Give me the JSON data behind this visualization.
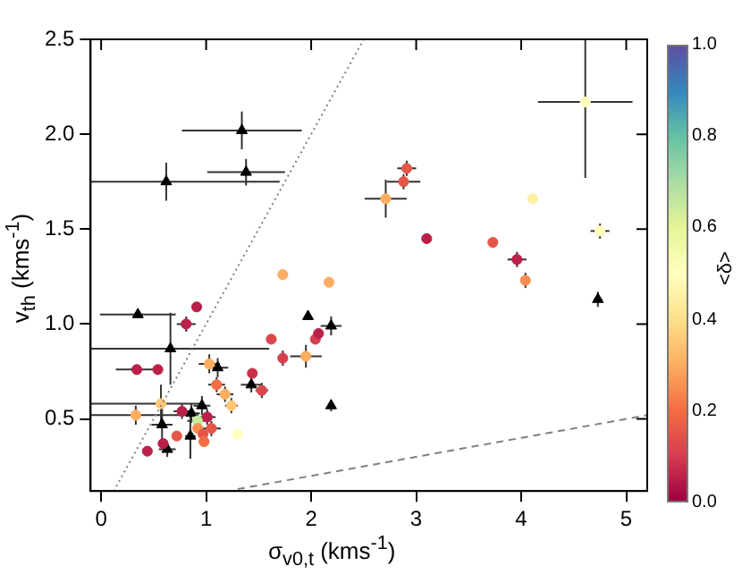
{
  "chart_data": {
    "type": "scatter",
    "xlabel": "σ$_{v0,t}$ (kms$^{-1}$)",
    "ylabel": "v$_{th}$ (kms$^{-1}$)",
    "clabel": "<δ>",
    "xlim": [
      -0.1,
      5.2
    ],
    "ylim": [
      0.12,
      2.5
    ],
    "xticks": [
      0,
      1,
      2,
      3,
      4,
      5
    ],
    "yticks": [
      0.5,
      {
        "value": 1,
        "label": "1.0"
      },
      1.5,
      {
        "value": 2,
        "label": "2.0"
      },
      2.5
    ],
    "clim": [
      0,
      1
    ],
    "cticks": [
      {
        "value": 0,
        "label": "0.0"
      },
      0.2,
      0.4,
      0.6,
      0.8,
      {
        "value": 1,
        "label": "1.0"
      }
    ],
    "grid": false,
    "legend": false,
    "series": [
      {
        "type": "line",
        "color": "#808080",
        "line_style": "dotted",
        "marker": "none",
        "x": [
          0.12,
          2.5
        ],
        "values": [
          0.12,
          2.5
        ]
      },
      {
        "type": "line",
        "color": "#808080",
        "line_style": "dashed",
        "marker": "none",
        "x": [
          1.3,
          5.2
        ],
        "values": [
          0.13,
          0.52
        ]
      },
      {
        "marker": "circle",
        "x": [
          0.91,
          0.81,
          0.34,
          0.54,
          1.03,
          1.1,
          1.18,
          1.24,
          1.44,
          1.53,
          1.62,
          1.73,
          1.95,
          2.04,
          2.07,
          1.73,
          2.17,
          0.92,
          1.01,
          0.77,
          0.92,
          1.05,
          0.97,
          0.98,
          0.72,
          0.59,
          0.44,
          1.3,
          0.57,
          0.33,
          4.61,
          2.91,
          2.88,
          2.71,
          4.11,
          3.1,
          3.73,
          3.96,
          4.75,
          4.04
        ],
        "values": [
          1.09,
          1.0,
          0.76,
          0.76,
          0.79,
          0.68,
          0.63,
          0.57,
          0.74,
          0.65,
          0.92,
          0.82,
          0.83,
          0.92,
          0.95,
          1.26,
          1.22,
          0.49,
          0.51,
          0.54,
          0.45,
          0.45,
          0.42,
          0.38,
          0.41,
          0.37,
          0.33,
          0.42,
          0.58,
          0.52,
          2.17,
          1.82,
          1.75,
          1.66,
          1.66,
          1.45,
          1.43,
          1.34,
          1.49,
          1.23
        ],
        "cvalues": [
          0.05,
          0.05,
          0.05,
          0.05,
          0.3,
          0.2,
          0.3,
          0.35,
          0.08,
          0.12,
          0.12,
          0.1,
          0.3,
          0.1,
          0.05,
          0.3,
          0.3,
          0.65,
          0.05,
          0.05,
          0.25,
          0.15,
          0.15,
          0.2,
          0.15,
          0.05,
          0.05,
          0.5,
          0.35,
          0.3,
          0.5,
          0.15,
          0.15,
          0.3,
          0.45,
          0.05,
          0.15,
          0.05,
          0.5,
          0.25
        ],
        "colors": [
          "#ba2049",
          "#ba2049",
          "#ba2049",
          "#ba2049",
          "#fdae61",
          "#f46d43",
          "#fdae61",
          "#fec776",
          "#ca324c",
          "#db474d",
          "#db474d",
          "#d53e4f",
          "#fdae61",
          "#d53e4f",
          "#ba2049",
          "#fdae61",
          "#fdae61",
          "#c9e99e",
          "#ba2049",
          "#ba2049",
          "#f98e52",
          "#e55649",
          "#e55649",
          "#f46d43",
          "#e55649",
          "#ba2049",
          "#ba2049",
          "#ffffbf",
          "#fec776",
          "#fdae61",
          "#ffffbf",
          "#e55649",
          "#e55649",
          "#fdae61",
          "#fff0a5",
          "#ba2049",
          "#e55649",
          "#ba2049",
          "#ffffbf",
          "#f98e52"
        ],
        "xerrors": [
          null,
          0.09,
          0.2,
          null,
          0.1,
          0.08,
          0.08,
          0.06,
          null,
          0.06,
          null,
          0.04,
          0.15,
          null,
          null,
          null,
          null,
          0.1,
          0.08,
          0.08,
          null,
          0.09,
          null,
          null,
          null,
          null,
          null,
          null,
          [
            -0.1,
            0.95
          ],
          [
            -0.1,
            0.89
          ],
          0.45,
          0.09,
          0.16,
          0.2,
          null,
          null,
          null,
          0.09,
          0.09,
          null
        ],
        "errors": [
          null,
          0.04,
          null,
          null,
          0.05,
          0.04,
          0.04,
          0.04,
          null,
          0.04,
          null,
          0.04,
          0.06,
          null,
          null,
          null,
          null,
          0.04,
          0.04,
          0.04,
          null,
          0.04,
          null,
          null,
          null,
          null,
          null,
          null,
          0.1,
          0.05,
          [
            1.77,
            2.5
          ],
          0.04,
          0.04,
          0.1,
          null,
          null,
          null,
          0.04,
          0.04,
          0.04
        ]
      },
      {
        "marker": "triangle",
        "color": "#000000",
        "x": [
          1.34,
          1.38,
          0.62,
          0.35,
          0.66,
          1.11,
          1.43,
          0.96,
          0.86,
          0.58,
          0.63,
          0.85,
          1.97,
          2.19,
          2.19,
          4.73
        ],
        "values": [
          2.02,
          1.8,
          1.75,
          1.05,
          0.87,
          0.77,
          0.68,
          0.57,
          0.53,
          0.47,
          0.34,
          0.41,
          1.04,
          0.99,
          0.57,
          1.13
        ],
        "xerrors": [
          0.57,
          0.37,
          [
            -0.1,
            1.7
          ],
          0.36,
          [
            -0.1,
            1.6
          ],
          0.1,
          0.1,
          0.08,
          0.08,
          0.1,
          0.08,
          0.05,
          null,
          0.1,
          0.03,
          0.04
        ],
        "errors": [
          0.1,
          0.07,
          0.1,
          0.02,
          0.19,
          0.05,
          0.04,
          0.05,
          0.05,
          0.12,
          0.04,
          0.12,
          null,
          0.05,
          0.03,
          0.04
        ]
      }
    ]
  }
}
